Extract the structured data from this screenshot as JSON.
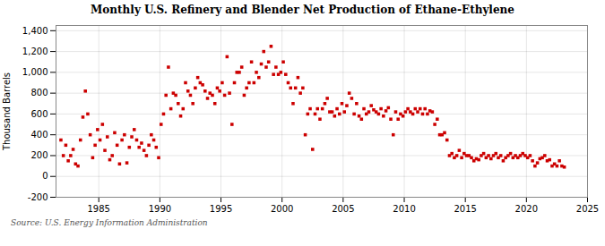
{
  "chart_data": {
    "type": "scatter",
    "title": "Monthly U.S. Refinery and Blender Net Production of Ethane-Ethylene",
    "ylabel": "Thousand Barrels",
    "annotation": "Source: U.S. Energy Information Administration",
    "color": "#cc0000",
    "marker": "square",
    "grid": true,
    "xlim": [
      1981.5,
      2025
    ],
    "ylim": [
      -200,
      1450
    ],
    "xticks": [
      1985,
      1990,
      1995,
      2000,
      2005,
      2010,
      2015,
      2020,
      2025
    ],
    "yticks": [
      -200,
      0,
      200,
      400,
      600,
      800,
      {
        "value": 1000,
        "label": "1,000"
      },
      {
        "value": 1200,
        "label": "1,200"
      },
      {
        "value": 1400,
        "label": "1,400"
      }
    ],
    "x": [
      1981.9,
      1982.1,
      1982.3,
      1982.5,
      1982.7,
      1982.9,
      1983.1,
      1983.3,
      1983.5,
      1983.7,
      1983.9,
      1984.1,
      1984.3,
      1984.5,
      1984.7,
      1984.9,
      1985.1,
      1985.3,
      1985.5,
      1985.7,
      1985.9,
      1986.1,
      1986.3,
      1986.5,
      1986.7,
      1986.9,
      1987.1,
      1987.3,
      1987.5,
      1987.7,
      1987.9,
      1988.1,
      1988.3,
      1988.5,
      1988.7,
      1988.9,
      1989.1,
      1989.3,
      1989.5,
      1989.7,
      1989.9,
      1990.1,
      1990.3,
      1990.5,
      1990.7,
      1990.9,
      1991.1,
      1991.3,
      1991.5,
      1991.7,
      1991.9,
      1992.1,
      1992.3,
      1992.5,
      1992.7,
      1992.9,
      1993.1,
      1993.3,
      1993.5,
      1993.7,
      1993.9,
      1994.1,
      1994.3,
      1994.5,
      1994.7,
      1994.9,
      1995.1,
      1995.3,
      1995.5,
      1995.7,
      1995.9,
      1996.1,
      1996.3,
      1996.5,
      1996.7,
      1996.9,
      1997.1,
      1997.3,
      1997.5,
      1997.7,
      1997.9,
      1998.1,
      1998.3,
      1998.5,
      1998.7,
      1998.9,
      1999.1,
      1999.3,
      1999.5,
      1999.7,
      1999.9,
      2000.1,
      2000.3,
      2000.5,
      2000.7,
      2000.9,
      2001.1,
      2001.3,
      2001.5,
      2001.7,
      2001.9,
      2002.1,
      2002.3,
      2002.5,
      2002.7,
      2002.9,
      2003.1,
      2003.3,
      2003.5,
      2003.7,
      2003.9,
      2004.1,
      2004.3,
      2004.5,
      2004.7,
      2004.9,
      2005.1,
      2005.3,
      2005.5,
      2005.7,
      2005.9,
      2006.1,
      2006.3,
      2006.5,
      2006.7,
      2006.9,
      2007.1,
      2007.3,
      2007.5,
      2007.7,
      2007.9,
      2008.1,
      2008.3,
      2008.5,
      2008.7,
      2008.9,
      2009.1,
      2009.3,
      2009.5,
      2009.7,
      2009.9,
      2010.1,
      2010.3,
      2010.5,
      2010.7,
      2010.9,
      2011.1,
      2011.3,
      2011.5,
      2011.7,
      2011.9,
      2012.1,
      2012.3,
      2012.5,
      2012.7,
      2012.9,
      2013.1,
      2013.3,
      2013.5,
      2013.7,
      2013.9,
      2014.1,
      2014.3,
      2014.5,
      2014.7,
      2014.9,
      2015.1,
      2015.3,
      2015.5,
      2015.7,
      2015.9,
      2016.1,
      2016.3,
      2016.5,
      2016.7,
      2016.9,
      2017.1,
      2017.3,
      2017.5,
      2017.7,
      2017.9,
      2018.1,
      2018.3,
      2018.5,
      2018.7,
      2018.9,
      2019.1,
      2019.3,
      2019.5,
      2019.7,
      2019.9,
      2020.1,
      2020.3,
      2020.5,
      2020.7,
      2020.9,
      2021.1,
      2021.3,
      2021.5,
      2021.7,
      2021.9,
      2022.1,
      2022.3,
      2022.5,
      2022.7,
      2022.9,
      2023.1
    ],
    "values": [
      350,
      200,
      300,
      150,
      200,
      260,
      120,
      100,
      350,
      570,
      820,
      600,
      400,
      180,
      300,
      450,
      350,
      500,
      250,
      380,
      160,
      200,
      420,
      300,
      120,
      350,
      400,
      130,
      280,
      380,
      450,
      350,
      280,
      320,
      250,
      200,
      300,
      400,
      350,
      280,
      180,
      500,
      600,
      780,
      1050,
      650,
      800,
      780,
      700,
      580,
      650,
      900,
      820,
      780,
      700,
      850,
      950,
      900,
      880,
      820,
      750,
      800,
      780,
      700,
      850,
      820,
      900,
      780,
      1150,
      800,
      500,
      900,
      1000,
      1000,
      1050,
      780,
      850,
      900,
      1100,
      900,
      1000,
      950,
      1080,
      1200,
      1050,
      1100,
      1250,
      980,
      1050,
      980,
      1000,
      1100,
      980,
      900,
      850,
      700,
      850,
      950,
      800,
      850,
      400,
      600,
      650,
      260,
      600,
      650,
      550,
      650,
      700,
      750,
      620,
      620,
      580,
      650,
      600,
      700,
      620,
      680,
      800,
      750,
      600,
      700,
      580,
      550,
      650,
      600,
      620,
      680,
      640,
      620,
      600,
      650,
      580,
      630,
      660,
      550,
      400,
      620,
      550,
      600,
      580,
      620,
      650,
      620,
      600,
      650,
      620,
      650,
      600,
      650,
      600,
      630,
      620,
      500,
      550,
      400,
      400,
      420,
      350,
      200,
      220,
      180,
      200,
      250,
      180,
      220,
      200,
      200,
      180,
      150,
      170,
      160,
      200,
      220,
      180,
      200,
      170,
      200,
      220,
      180,
      200,
      150,
      180,
      200,
      220,
      180,
      200,
      180,
      200,
      220,
      200,
      180,
      200,
      150,
      100,
      130,
      170,
      180,
      200,
      150,
      160,
      100,
      120,
      100,
      150,
      100,
      90
    ]
  }
}
